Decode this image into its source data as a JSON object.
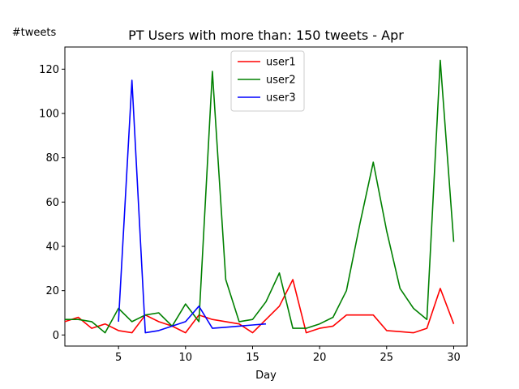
{
  "chart_data": {
    "type": "line",
    "title": "PT Users with more than: 150 tweets - Apr",
    "xlabel": "Day",
    "ylabel": "#tweets",
    "xlim": [
      1,
      31
    ],
    "ylim": [
      -5,
      130
    ],
    "xticks": [
      5,
      10,
      15,
      20,
      25,
      30
    ],
    "yticks": [
      0,
      20,
      40,
      60,
      80,
      100,
      120
    ],
    "grid": false,
    "legend_position": "top-center",
    "series": [
      {
        "name": "user1",
        "color": "#ff0000",
        "x": [
          1,
          2,
          3,
          4,
          5,
          6,
          7,
          8,
          9,
          10,
          11,
          12,
          13,
          14,
          15,
          16,
          17,
          18,
          19,
          20,
          21,
          22,
          23,
          24,
          25,
          26,
          27,
          28,
          29,
          30
        ],
        "y": [
          6,
          8,
          3,
          5,
          2,
          1,
          9,
          6,
          4,
          1,
          9,
          7,
          6,
          5,
          1,
          7,
          13,
          25,
          1,
          3,
          4,
          9,
          9,
          9,
          2,
          1.5,
          1,
          3,
          21,
          5
        ]
      },
      {
        "name": "user2",
        "color": "#008000",
        "x": [
          1,
          2,
          3,
          4,
          5,
          6,
          7,
          8,
          9,
          10,
          11,
          12,
          13,
          14,
          15,
          16,
          17,
          18,
          19,
          20,
          21,
          22,
          23,
          24,
          25,
          26,
          27,
          28,
          29,
          30
        ],
        "y": [
          7,
          7,
          6,
          1,
          12,
          6,
          9,
          10,
          4,
          14,
          6,
          119,
          25,
          6,
          7,
          15,
          28,
          3,
          3,
          5,
          8,
          20,
          50,
          78,
          47,
          21,
          12,
          7,
          124,
          42
        ]
      },
      {
        "name": "user3",
        "color": "#0000ff",
        "x": [
          5,
          6,
          7,
          8,
          9,
          10,
          11,
          12,
          13,
          14,
          15,
          16
        ],
        "y": [
          6,
          115,
          1,
          2,
          4,
          6,
          13,
          3,
          3.5,
          4,
          4.5,
          5
        ]
      }
    ]
  }
}
